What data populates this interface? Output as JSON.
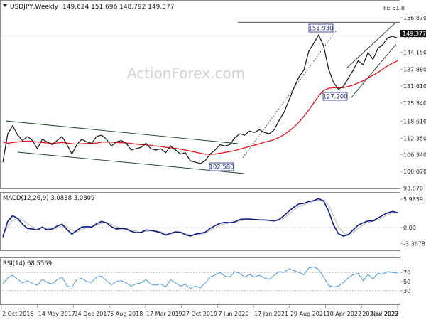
{
  "header": {
    "symbol": "USDJPY,Weekly",
    "ohlc": "149.624 151.696 148.792 149.377",
    "menu_arrow": "triangle-down-icon"
  },
  "watermark": "ActionForex.com",
  "fib_label": "FE 61.8",
  "colors": {
    "price": "#141414",
    "ma": "#e0141e",
    "channel": "#1c3a1c",
    "dotted": "#333333",
    "macd": "#0c1a80",
    "signal": "#b4b4b4",
    "rsi": "#3a8fd8",
    "label_border": "#1a2a8a",
    "label_bg": "#ffffff",
    "price_tag_bg": "#141414"
  },
  "chart_data": [
    {
      "type": "line",
      "title": "USDJPY,Weekly",
      "ylim": [
        93.8,
        159.5
      ],
      "y_ticks": [
        "156.870",
        "150.380",
        "144.150",
        "137.880",
        "131.610",
        "125.340",
        "118.610",
        "112.350",
        "106.340",
        "100.070",
        "93.870"
      ],
      "last_price": "149.377",
      "fib_level": 155.2,
      "x_ticks": [
        "2 Oct 2016",
        "14 May 2017",
        "24 Dec 2017",
        "5 Aug 2018",
        "17 Mar 2019",
        "27 Oct 2019",
        "7 Jun 2020",
        "17 Jan 2021",
        "29 Aug 2021",
        "10 Apr 2022",
        "20 Nov 2022",
        "2 Jul 2023"
      ],
      "annotations": [
        "151.930",
        "127.200",
        "102.580"
      ],
      "series": [
        {
          "values": [
            103.5,
            114.0,
            117.0,
            113.5,
            111.5,
            113.0,
            111.5,
            108.5,
            112.0,
            111.0,
            110.0,
            111.5,
            113.0,
            110.0,
            106.5,
            110.0,
            112.0,
            111.0,
            110.5,
            113.0,
            113.5,
            112.0,
            109.5,
            111.0,
            111.5,
            110.5,
            108.0,
            108.5,
            109.0,
            110.5,
            108.5,
            108.0,
            108.5,
            107.0,
            109.5,
            108.0,
            106.5,
            107.0,
            104.0,
            103.5,
            103.0,
            104.0,
            106.5,
            108.0,
            110.0,
            109.5,
            110.0,
            112.5,
            114.0,
            113.5,
            115.0,
            114.5,
            115.5,
            114.5,
            114.0,
            115.5,
            119.0,
            122.0,
            126.5,
            131.0,
            135.0,
            137.5,
            144.5,
            147.5,
            150.5,
            146.5,
            138.0,
            133.0,
            130.5,
            131.5,
            134.5,
            137.5,
            141.0,
            139.5,
            144.0,
            141.5,
            145.5,
            147.0,
            149.5,
            150.0,
            149.4
          ]
        },
        {
          "values": [
            111.0,
            110.5,
            110.8,
            111.0,
            111.2,
            111.3,
            111.2,
            111.0,
            110.8,
            110.6,
            110.5,
            110.6,
            110.8,
            110.6,
            110.3,
            110.2,
            110.3,
            110.4,
            110.4,
            110.6,
            110.9,
            111.0,
            110.9,
            110.8,
            110.7,
            110.6,
            110.4,
            110.2,
            110.0,
            109.9,
            109.7,
            109.5,
            109.3,
            109.0,
            108.8,
            108.6,
            108.3,
            108.0,
            107.6,
            107.2,
            106.8,
            106.5,
            106.4,
            106.5,
            106.8,
            107.1,
            107.4,
            107.8,
            108.3,
            108.8,
            109.3,
            109.8,
            110.3,
            110.9,
            111.3,
            111.9,
            112.7,
            113.7,
            115.0,
            116.5,
            118.3,
            120.4,
            122.8,
            125.4,
            128.0,
            130.0,
            130.8,
            131.0,
            131.0,
            131.0,
            131.5,
            132.0,
            132.8,
            133.6,
            134.6,
            135.6,
            136.7,
            137.9,
            139.1,
            140.1,
            141.0
          ]
        }
      ]
    },
    {
      "type": "line",
      "title": "MACD(12,26,9) 3.0838 3.0809",
      "ylim": [
        -4.8,
        7.2
      ],
      "y_ticks": [
        "5.9859",
        "0.00",
        "-3.3678"
      ],
      "series": [
        {
          "values": [
            -2.0,
            1.3,
            2.5,
            1.9,
            0.7,
            -0.2,
            -0.3,
            -0.5,
            0.1,
            -0.5,
            -0.3,
            0.3,
            0.7,
            -0.4,
            -1.4,
            -0.6,
            0.1,
            0.2,
            0.1,
            0.8,
            1.3,
            1.0,
            0.2,
            -0.3,
            -0.2,
            -0.3,
            -0.8,
            -1.1,
            -1.0,
            -0.5,
            -0.6,
            -0.8,
            -1.1,
            -1.6,
            -1.2,
            -0.9,
            -1.0,
            -1.5,
            -1.8,
            -1.4,
            -1.2,
            -1.0,
            -0.2,
            0.4,
            0.9,
            1.1,
            1.0,
            1.2,
            1.7,
            1.8,
            1.8,
            1.7,
            1.6,
            1.6,
            1.5,
            1.4,
            1.7,
            2.5,
            3.5,
            4.3,
            5.0,
            5.1,
            5.5,
            5.7,
            6.1,
            5.6,
            3.5,
            0.6,
            -1.3,
            -1.8,
            -1.5,
            -0.5,
            0.5,
            1.0,
            1.4,
            1.4,
            2.0,
            2.6,
            3.1,
            3.4,
            3.1
          ]
        },
        {
          "values": [
            -1.5,
            0.3,
            1.5,
            1.9,
            1.6,
            0.8,
            0.2,
            -0.2,
            -0.1,
            -0.2,
            -0.3,
            -0.1,
            0.3,
            0.2,
            -0.6,
            -0.9,
            -0.4,
            -0.1,
            0.1,
            0.5,
            0.9,
            1.0,
            0.7,
            0.2,
            -0.1,
            -0.2,
            -0.5,
            -0.8,
            -1.0,
            -0.8,
            -0.7,
            -0.7,
            -0.9,
            -1.3,
            -1.4,
            -1.1,
            -1.0,
            -1.2,
            -1.6,
            -1.6,
            -1.4,
            -1.2,
            -0.6,
            -0.1,
            0.5,
            0.8,
            1.0,
            1.1,
            1.4,
            1.6,
            1.7,
            1.7,
            1.7,
            1.6,
            1.6,
            1.5,
            1.5,
            2.0,
            2.8,
            3.7,
            4.5,
            4.8,
            5.2,
            5.5,
            5.8,
            5.8,
            4.8,
            2.5,
            0.2,
            -1.1,
            -1.6,
            -1.0,
            -0.2,
            0.6,
            1.1,
            1.3,
            1.6,
            2.2,
            2.7,
            3.1,
            3.1
          ]
        }
      ]
    },
    {
      "type": "line",
      "title": "RSI(14) 68.5569",
      "ylim": [
        0,
        100
      ],
      "y_ticks": [
        "70",
        "50",
        "30"
      ],
      "series": [
        {
          "values": [
            45,
            58,
            64,
            55,
            47,
            52,
            46,
            42,
            55,
            48,
            45,
            54,
            60,
            40,
            38,
            55,
            57,
            50,
            48,
            60,
            62,
            52,
            43,
            50,
            52,
            47,
            40,
            45,
            47,
            54,
            44,
            42,
            45,
            38,
            54,
            47,
            40,
            44,
            35,
            40,
            36,
            46,
            60,
            64,
            70,
            62,
            60,
            72,
            68,
            60,
            66,
            60,
            64,
            58,
            55,
            64,
            72,
            70,
            78,
            74,
            70,
            65,
            80,
            82,
            77,
            60,
            42,
            38,
            40,
            48,
            58,
            65,
            68,
            52,
            66,
            56,
            68,
            66,
            72,
            70,
            68.6
          ]
        }
      ]
    }
  ]
}
